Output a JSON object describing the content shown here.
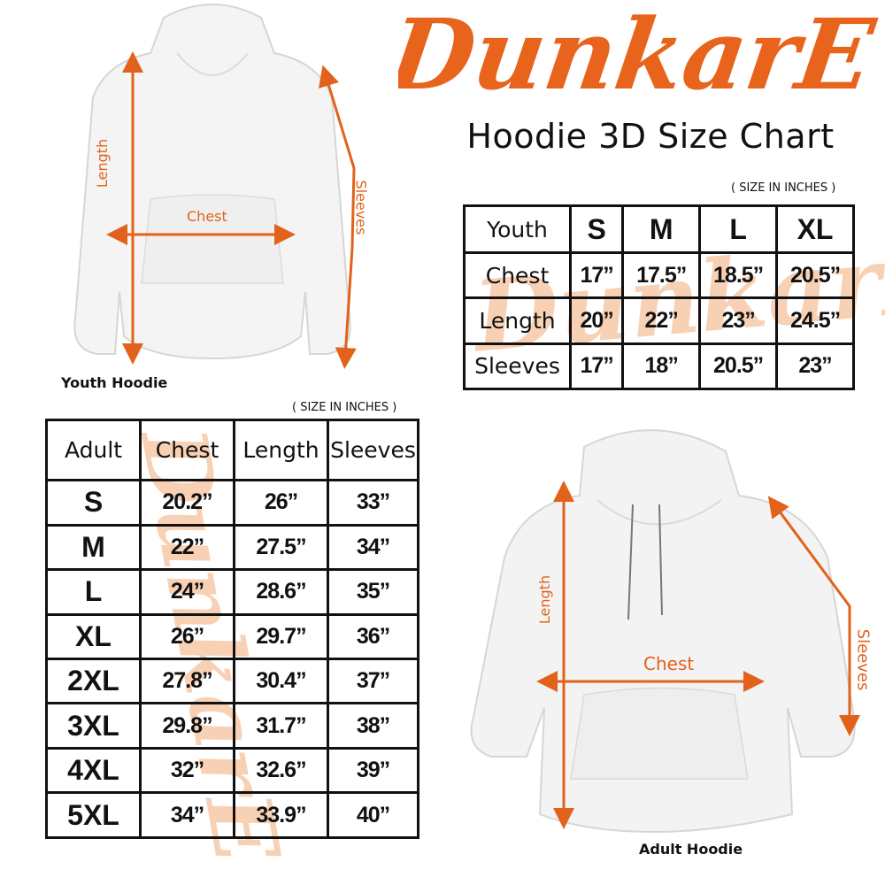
{
  "brand": {
    "logo_text": "DunkarE",
    "color": "#e8641c",
    "watermark_color": "#f7c9a8"
  },
  "title": "Hoodie 3D Size Chart",
  "youth": {
    "unit_caption": "( SIZE IN INCHES )",
    "header": [
      "Youth",
      "S",
      "M",
      "L",
      "XL"
    ],
    "rows": [
      {
        "label": "Chest",
        "values": [
          "17”",
          "17.5”",
          "18.5”",
          "20.5”"
        ]
      },
      {
        "label": "Length",
        "values": [
          "20”",
          "22”",
          "23”",
          "24.5”"
        ]
      },
      {
        "label": "Sleeves",
        "values": [
          "17”",
          "18”",
          "20.5”",
          "23”"
        ]
      }
    ],
    "image_label": "Youth Hoodie",
    "annotations": {
      "length": "Length",
      "chest": "Chest",
      "sleeves": "Sleeves"
    }
  },
  "adult": {
    "unit_caption": "( SIZE IN INCHES )",
    "header": [
      "Adult",
      "Chest",
      "Length",
      "Sleeves"
    ],
    "rows": [
      {
        "size": "S",
        "values": [
          "20.2”",
          "26”",
          "33”"
        ]
      },
      {
        "size": "M",
        "values": [
          "22”",
          "27.5”",
          "34”"
        ]
      },
      {
        "size": "L",
        "values": [
          "24”",
          "28.6”",
          "35”"
        ]
      },
      {
        "size": "XL",
        "values": [
          "26”",
          "29.7”",
          "36”"
        ]
      },
      {
        "size": "2XL",
        "values": [
          "27.8”",
          "30.4”",
          "37”"
        ]
      },
      {
        "size": "3XL",
        "values": [
          "29.8”",
          "31.7”",
          "38”"
        ]
      },
      {
        "size": "4XL",
        "values": [
          "32”",
          "32.6”",
          "39”"
        ]
      },
      {
        "size": "5XL",
        "values": [
          "34”",
          "33.9”",
          "40”"
        ]
      }
    ],
    "image_label": "Adult Hoodie",
    "annotations": {
      "length": "Length",
      "chest": "Chest",
      "sleeves": "Sleeves"
    }
  }
}
